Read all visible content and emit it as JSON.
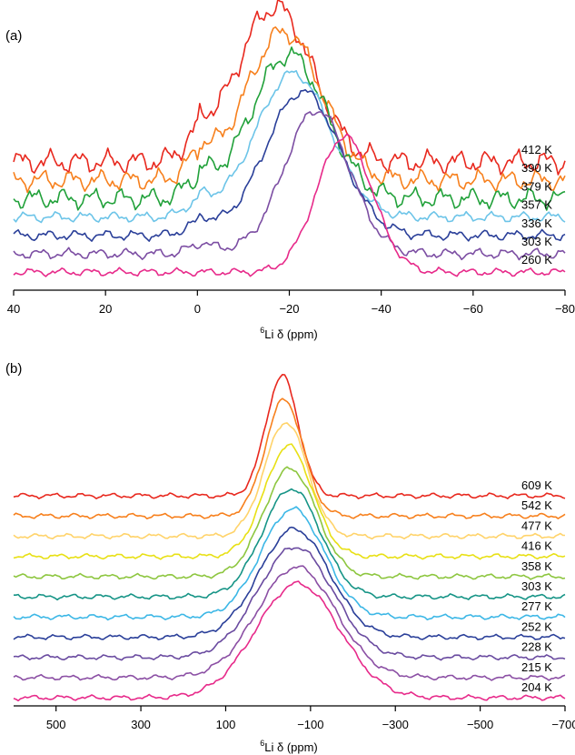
{
  "chart_data": [
    {
      "type": "line",
      "panel_label": "(a)",
      "xlabel_sup": "6",
      "xlabel_main": "Li δ (ppm)",
      "xlim": [
        40,
        -80
      ],
      "xticks": [
        40,
        20,
        0,
        -20,
        -40,
        -60,
        -80
      ],
      "x_reversed": true,
      "stacked_traces": true,
      "grid": false,
      "series": [
        {
          "name": "412 K",
          "color": "#e8281e",
          "peak_ppm": -17,
          "height": 1.0,
          "width": 8,
          "baseline_noise": 0.09,
          "shoulder": {
            "ppm": 0,
            "height": 0.12
          }
        },
        {
          "name": "390 K",
          "color": "#f7801d",
          "peak_ppm": -19,
          "height": 0.96,
          "width": 8,
          "baseline_noise": 0.08,
          "shoulder": {
            "ppm": 0,
            "height": 0.12
          }
        },
        {
          "name": "379 K",
          "color": "#21a13a",
          "peak_ppm": -20,
          "height": 0.93,
          "width": 8,
          "baseline_noise": 0.08,
          "shoulder": {
            "ppm": 0,
            "height": 0.1
          }
        },
        {
          "name": "357 K",
          "color": "#6cc4e8",
          "peak_ppm": -21,
          "height": 0.93,
          "width": 8,
          "baseline_noise": 0.04,
          "shoulder": {
            "ppm": 0,
            "height": 0.08
          }
        },
        {
          "name": "336 K",
          "color": "#2a3f99",
          "peak_ppm": -23,
          "height": 0.93,
          "width": 8,
          "baseline_noise": 0.04,
          "shoulder": {
            "ppm": 0,
            "height": 0.07
          }
        },
        {
          "name": "303 K",
          "color": "#7c4ea3",
          "peak_ppm": -26,
          "height": 0.93,
          "width": 7,
          "baseline_noise": 0.04,
          "shoulder": {
            "ppm": 0,
            "height": 0.05
          }
        },
        {
          "name": "260 K",
          "color": "#e72a8a",
          "peak_ppm": -32,
          "height": 0.88,
          "width": 6,
          "baseline_noise": 0.03,
          "shoulder": {
            "ppm": 0,
            "height": 0.0
          }
        }
      ]
    },
    {
      "type": "line",
      "panel_label": "(b)",
      "xlabel_sup": "6",
      "xlabel_main": "Li δ (ppm)",
      "xlim": [
        600,
        -700
      ],
      "xticks": [
        500,
        300,
        100,
        -100,
        -300,
        -500,
        -700
      ],
      "x_reversed": true,
      "stacked_traces": true,
      "grid": false,
      "series": [
        {
          "name": "609 K",
          "color": "#e8281e",
          "peak_ppm": -33,
          "height": 1.0,
          "width": 38,
          "baseline_noise": 0.025
        },
        {
          "name": "542 K",
          "color": "#f7801d",
          "peak_ppm": -38,
          "height": 0.97,
          "width": 44,
          "baseline_noise": 0.025
        },
        {
          "name": "477 K",
          "color": "#ffd36a",
          "peak_ppm": -42,
          "height": 0.95,
          "width": 50,
          "baseline_noise": 0.025
        },
        {
          "name": "416 K",
          "color": "#e8e014",
          "peak_ppm": -48,
          "height": 0.92,
          "width": 56,
          "baseline_noise": 0.025
        },
        {
          "name": "358 K",
          "color": "#8dc63f",
          "peak_ppm": -52,
          "height": 0.9,
          "width": 62,
          "baseline_noise": 0.025
        },
        {
          "name": "303 K",
          "color": "#169486",
          "peak_ppm": -55,
          "height": 0.9,
          "width": 68,
          "baseline_noise": 0.025
        },
        {
          "name": "277 K",
          "color": "#3cb7e6",
          "peak_ppm": -58,
          "height": 0.9,
          "width": 74,
          "baseline_noise": 0.025
        },
        {
          "name": "252 K",
          "color": "#2a3f99",
          "peak_ppm": -62,
          "height": 0.9,
          "width": 82,
          "baseline_noise": 0.025
        },
        {
          "name": "228 K",
          "color": "#6a4ba0",
          "peak_ppm": -64,
          "height": 0.92,
          "width": 88,
          "baseline_noise": 0.025
        },
        {
          "name": "215 K",
          "color": "#8b4fa4",
          "peak_ppm": -67,
          "height": 0.92,
          "width": 92,
          "baseline_noise": 0.025
        },
        {
          "name": "204 K",
          "color": "#e72a8a",
          "peak_ppm": -70,
          "height": 0.95,
          "width": 98,
          "baseline_noise": 0.025
        }
      ]
    }
  ]
}
